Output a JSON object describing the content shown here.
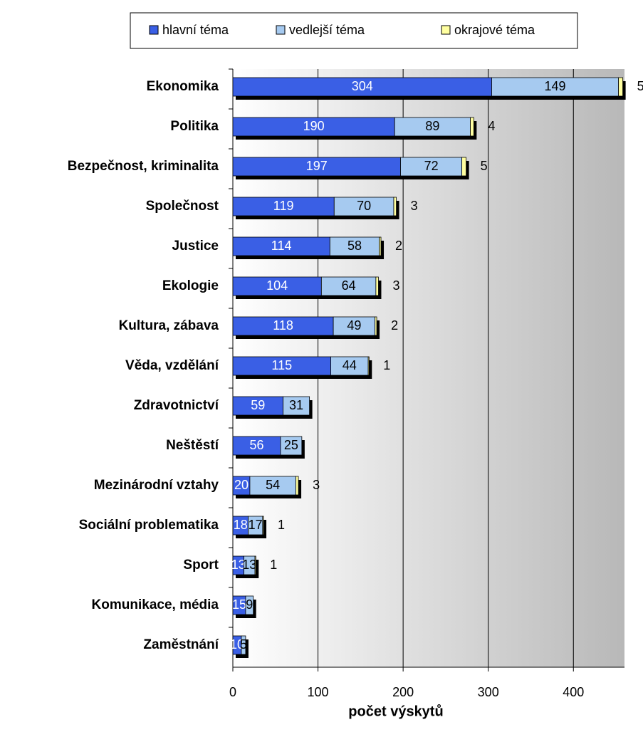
{
  "chart_data": {
    "type": "stacked-bar-horizontal",
    "x_label": "počet výskytů",
    "categories": [
      "Ekonomika",
      "Politika",
      "Bezpečnost, kriminalita",
      "Společnost",
      "Justice",
      "Ekologie",
      "Kultura, zábava",
      "Věda, vzdělání",
      "Zdravotnictví",
      "Neštěstí",
      "Mezinárodní vztahy",
      "Sociální problematika",
      "Sport",
      "Komunikace, média",
      "Zaměstnání"
    ],
    "series": [
      {
        "name": "hlavní téma",
        "color": "#3a5fe5",
        "values": [
          304,
          190,
          197,
          119,
          114,
          104,
          118,
          115,
          59,
          56,
          20,
          18,
          13,
          15,
          10
        ]
      },
      {
        "name": "vedlejší téma",
        "color": "#a6caf0",
        "values": [
          149,
          89,
          72,
          70,
          58,
          64,
          49,
          44,
          31,
          25,
          54,
          17,
          13,
          9,
          5
        ]
      },
      {
        "name": "okrajové téma",
        "color": "#ffffa0",
        "values": [
          5,
          4,
          5,
          3,
          2,
          3,
          2,
          1,
          0,
          0,
          3,
          1,
          1,
          0,
          0
        ]
      }
    ],
    "xlim": [
      0,
      460
    ],
    "xticks": [
      0,
      100,
      200,
      300,
      400
    ],
    "grid": true,
    "legend": "top"
  }
}
